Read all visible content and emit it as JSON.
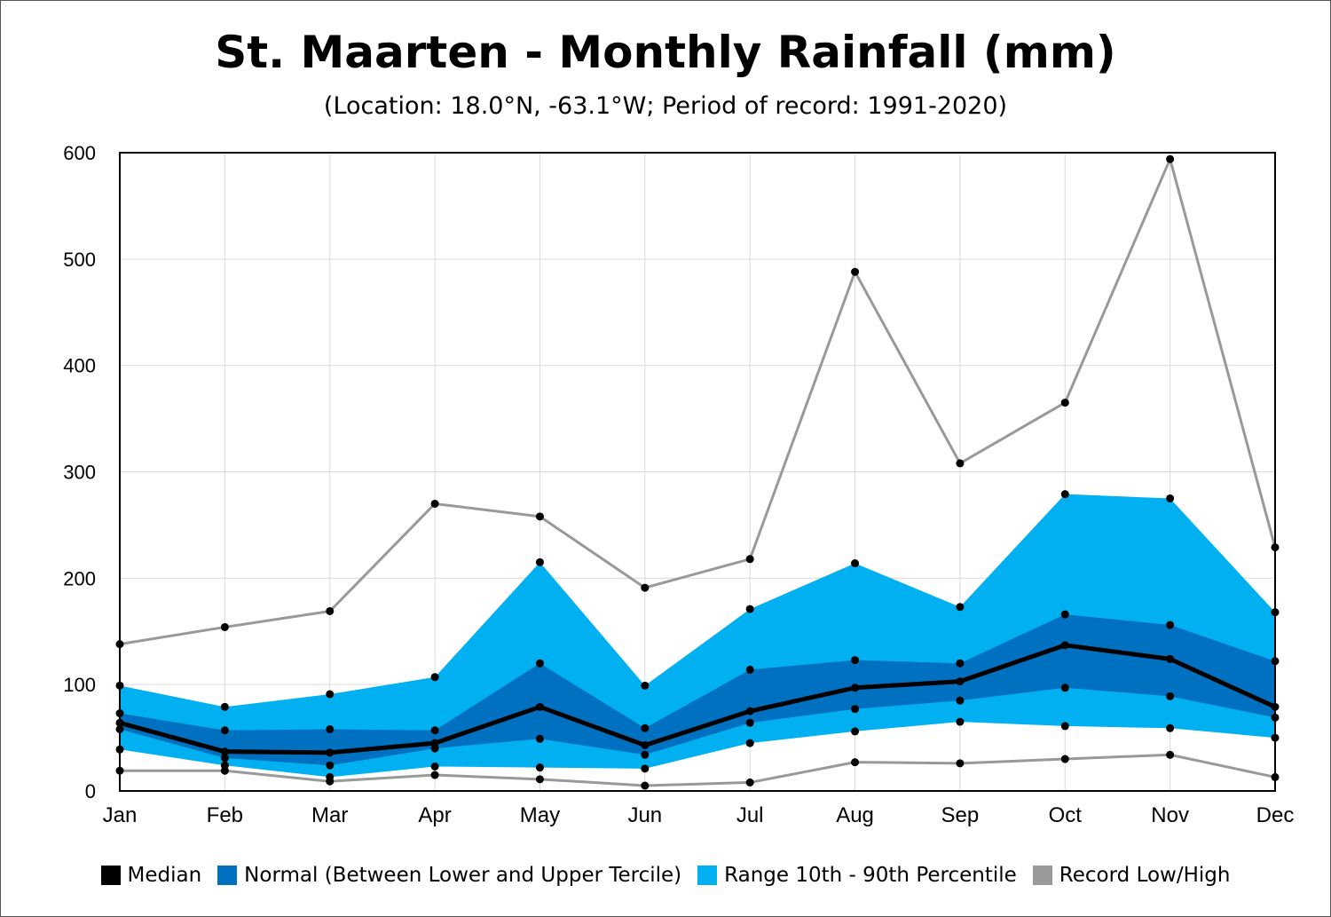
{
  "title": "St. Maarten - Monthly Rainfall (mm)",
  "subtitle": "(Location: 18.0°N, -63.1°W; Period of record: 1991-2020)",
  "legend": [
    {
      "label": "Median",
      "color": "#000000"
    },
    {
      "label": "Normal (Between Lower and Upper Tercile)",
      "color": "#0070C0"
    },
    {
      "label": "Range 10th - 90th Percentile",
      "color": "#00B0F0"
    },
    {
      "label": "Record Low/High",
      "color": "#999999"
    }
  ],
  "chart_data": {
    "type": "area",
    "title": "St. Maarten - Monthly Rainfall (mm)",
    "subtitle": "(Location: 18.0°N, -63.1°W; Period of record: 1991-2020)",
    "categories": [
      "Jan",
      "Feb",
      "Mar",
      "Apr",
      "May",
      "Jun",
      "Jul",
      "Aug",
      "Sep",
      "Oct",
      "Nov",
      "Dec"
    ],
    "ylim": [
      0,
      600
    ],
    "yticks": [
      0,
      100,
      200,
      300,
      400,
      500,
      600
    ],
    "grid": true,
    "legend_position": "bottom",
    "series": [
      {
        "name": "Record Low/High",
        "role": "record_high",
        "color": "#999999",
        "values": [
          138,
          154,
          169,
          270,
          258,
          191,
          218,
          488,
          308,
          365,
          594,
          229
        ]
      },
      {
        "name": "Range 10th - 90th Percentile",
        "role": "p90",
        "color": "#00B0F0",
        "values": [
          99,
          79,
          91,
          107,
          215,
          99,
          171,
          214,
          173,
          279,
          275,
          168
        ]
      },
      {
        "name": "Normal (Between Lower and Upper Tercile)",
        "role": "upper_tercile",
        "color": "#0070C0",
        "values": [
          73,
          57,
          58,
          57,
          120,
          59,
          114,
          123,
          120,
          166,
          156,
          122
        ]
      },
      {
        "name": "Median",
        "role": "median",
        "color": "#000000",
        "values": [
          64,
          37,
          36,
          45,
          79,
          43,
          75,
          97,
          103,
          137,
          124,
          79
        ]
      },
      {
        "name": "Normal (Between Lower and Upper Tercile)",
        "role": "lower_tercile",
        "color": "#0070C0",
        "values": [
          58,
          31,
          24,
          40,
          49,
          34,
          64,
          77,
          85,
          97,
          89,
          69
        ]
      },
      {
        "name": "Range 10th - 90th Percentile",
        "role": "p10",
        "color": "#00B0F0",
        "values": [
          39,
          24,
          13,
          23,
          22,
          21,
          45,
          56,
          65,
          61,
          59,
          50
        ]
      },
      {
        "name": "Record Low/High",
        "role": "record_low",
        "color": "#999999",
        "values": [
          19,
          19,
          9,
          15,
          11,
          5,
          8,
          27,
          26,
          30,
          34,
          13
        ]
      }
    ]
  }
}
